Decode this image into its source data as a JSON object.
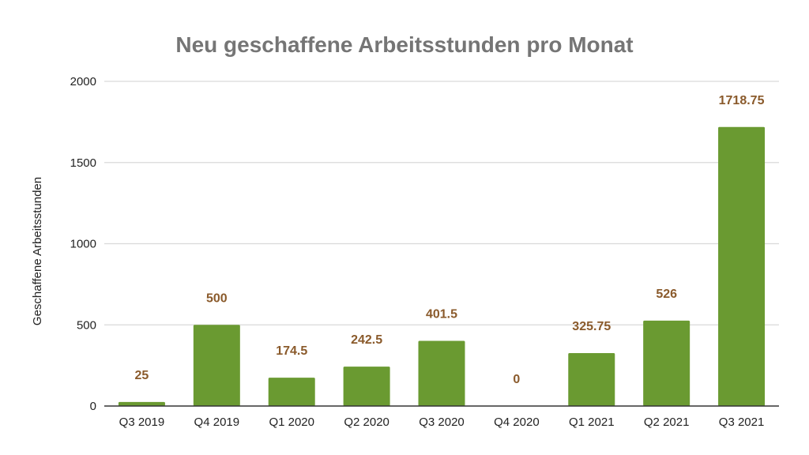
{
  "chart_data": {
    "type": "bar",
    "title": "Neu geschaffene Arbeitsstunden pro Monat",
    "xlabel": "",
    "ylabel": "Geschaffene Arbeitsstunden",
    "categories": [
      "Q3 2019",
      "Q4 2019",
      "Q1 2020",
      "Q2 2020",
      "Q3 2020",
      "Q4 2020",
      "Q1 2021",
      "Q2 2021",
      "Q3 2021"
    ],
    "values": [
      25,
      500,
      174.5,
      242.5,
      401.5,
      0,
      325.75,
      526,
      1718.75
    ],
    "data_labels": [
      "25",
      "500",
      "174.5",
      "242.5",
      "401.5",
      "0",
      "325.75",
      "526",
      "1718.75"
    ],
    "ylim": [
      0,
      2000
    ],
    "yticks": [
      0,
      500,
      1000,
      1500,
      2000
    ],
    "ytick_labels": [
      "0",
      "500",
      "1000",
      "1500",
      "2000"
    ],
    "grid": true,
    "legend": "none",
    "colors": {
      "bar": "#6a9a31",
      "data_label": "#8a5a2b",
      "title": "#757575",
      "gridline": "#d9d9d9",
      "baseline": "#333333",
      "text": "#222222"
    }
  }
}
